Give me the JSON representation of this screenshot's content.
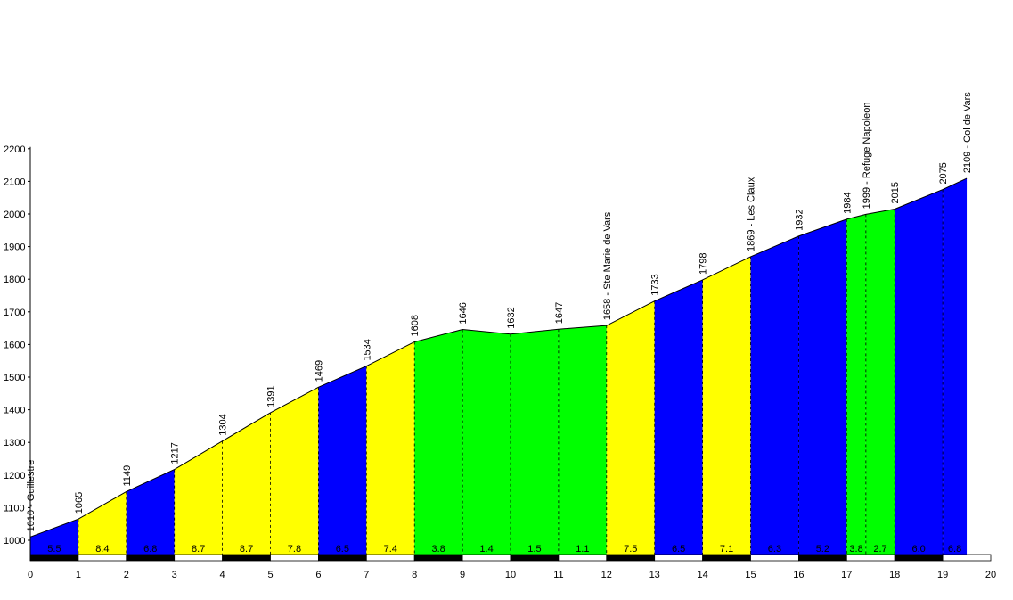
{
  "chart_data": {
    "type": "area",
    "title": "",
    "xlabel": "",
    "ylabel": "",
    "xlim": [
      0,
      20
    ],
    "ylim": [
      950,
      2200
    ],
    "x_ticks": [
      "0",
      "1",
      "2",
      "3",
      "4",
      "5",
      "6",
      "7",
      "8",
      "9",
      "10",
      "11",
      "12",
      "13",
      "14",
      "15",
      "16",
      "17",
      "18",
      "19",
      "20"
    ],
    "y_ticks": [
      "1000",
      "1100",
      "1200",
      "1300",
      "1400",
      "1500",
      "1600",
      "1700",
      "1800",
      "1900",
      "2000",
      "2100",
      "2200"
    ],
    "points": [
      {
        "x": 0,
        "y": 1010,
        "label": "1010 - Guillestre"
      },
      {
        "x": 1,
        "y": 1065,
        "label": "1065"
      },
      {
        "x": 2,
        "y": 1149,
        "label": "1149"
      },
      {
        "x": 3,
        "y": 1217,
        "label": "1217"
      },
      {
        "x": 4,
        "y": 1304,
        "label": "1304"
      },
      {
        "x": 5,
        "y": 1391,
        "label": "1391"
      },
      {
        "x": 6,
        "y": 1469,
        "label": "1469"
      },
      {
        "x": 7,
        "y": 1534,
        "label": "1534"
      },
      {
        "x": 8,
        "y": 1608,
        "label": "1608"
      },
      {
        "x": 9,
        "y": 1646,
        "label": "1646"
      },
      {
        "x": 10,
        "y": 1632,
        "label": "1632"
      },
      {
        "x": 11,
        "y": 1647,
        "label": "1647"
      },
      {
        "x": 12,
        "y": 1658,
        "label": "1658 - Ste Marie de Vars"
      },
      {
        "x": 13,
        "y": 1733,
        "label": "1733"
      },
      {
        "x": 14,
        "y": 1798,
        "label": "1798"
      },
      {
        "x": 15,
        "y": 1869,
        "label": "1869 - Les Claux"
      },
      {
        "x": 16,
        "y": 1932,
        "label": "1932"
      },
      {
        "x": 17,
        "y": 1984,
        "label": "1984"
      },
      {
        "x": 17.4,
        "y": 1999,
        "label": "1999 - Refuge Napoleon"
      },
      {
        "x": 18,
        "y": 2015,
        "label": "2015"
      },
      {
        "x": 19,
        "y": 2075,
        "label": "2075"
      },
      {
        "x": 19.5,
        "y": 2109,
        "label": "2109 - Col de Vars"
      }
    ],
    "segments": [
      {
        "from": 0,
        "to": 1,
        "gradient": "5.5",
        "color": "#0000ff"
      },
      {
        "from": 1,
        "to": 2,
        "gradient": "8.4",
        "color": "#ffff00"
      },
      {
        "from": 2,
        "to": 3,
        "gradient": "6.8",
        "color": "#0000ff"
      },
      {
        "from": 3,
        "to": 4,
        "gradient": "8.7",
        "color": "#ffff00"
      },
      {
        "from": 4,
        "to": 5,
        "gradient": "8.7",
        "color": "#ffff00"
      },
      {
        "from": 5,
        "to": 6,
        "gradient": "7.8",
        "color": "#ffff00"
      },
      {
        "from": 6,
        "to": 7,
        "gradient": "6.5",
        "color": "#0000ff"
      },
      {
        "from": 7,
        "to": 8,
        "gradient": "7.4",
        "color": "#ffff00"
      },
      {
        "from": 8,
        "to": 9,
        "gradient": "3.8",
        "color": "#00ff00"
      },
      {
        "from": 9,
        "to": 10,
        "gradient": "1.4",
        "color": "#00ff00"
      },
      {
        "from": 10,
        "to": 11,
        "gradient": "1.5",
        "color": "#00ff00"
      },
      {
        "from": 11,
        "to": 12,
        "gradient": "1.1",
        "color": "#00ff00"
      },
      {
        "from": 12,
        "to": 13,
        "gradient": "7.5",
        "color": "#ffff00"
      },
      {
        "from": 13,
        "to": 14,
        "gradient": "6.5",
        "color": "#0000ff"
      },
      {
        "from": 14,
        "to": 15,
        "gradient": "7.1",
        "color": "#ffff00"
      },
      {
        "from": 15,
        "to": 16,
        "gradient": "6.3",
        "color": "#0000ff"
      },
      {
        "from": 16,
        "to": 17,
        "gradient": "5.2",
        "color": "#0000ff"
      },
      {
        "from": 17,
        "to": 17.4,
        "gradient": "3.8",
        "color": "#00ff00"
      },
      {
        "from": 17.4,
        "to": 18,
        "gradient": "2.7",
        "color": "#00ff00"
      },
      {
        "from": 18,
        "to": 19,
        "gradient": "6.0",
        "color": "#0000ff"
      },
      {
        "from": 19,
        "to": 19.5,
        "gradient": "6.8",
        "color": "#0000ff"
      }
    ]
  }
}
